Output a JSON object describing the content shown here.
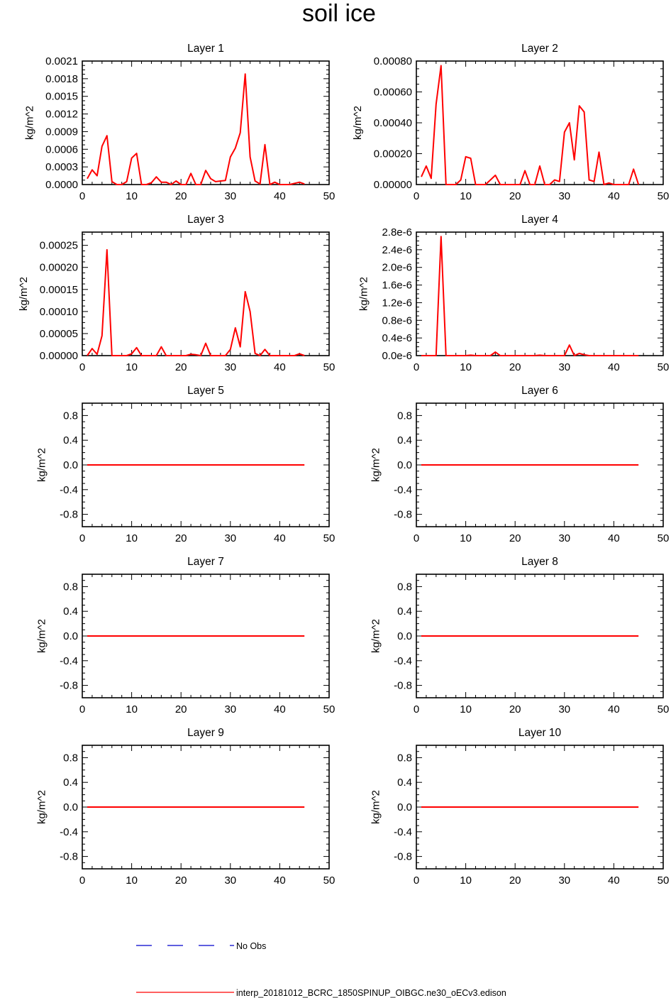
{
  "title": "soil ice",
  "legend": {
    "entries": [
      {
        "label": "No Obs",
        "color": "#0000cc",
        "style": "dashed"
      },
      {
        "label": "interp_20181012_BCRC_1850SPINUP_OIBGC.ne30_oECv3.edison",
        "color": "#ff0000",
        "style": "solid"
      }
    ]
  },
  "colors": {
    "series": "#ff0000",
    "obs": "#0000cc",
    "axis": "#000000"
  },
  "chart_data": [
    {
      "type": "line",
      "title": "Layer 1",
      "xlabel": "",
      "ylabel": "kg/m^2",
      "xlim": [
        0,
        50
      ],
      "ylim": [
        0,
        0.0021
      ],
      "xticks": [
        0,
        10,
        20,
        30,
        40,
        50
      ],
      "xtick_labels": [
        "0",
        "10",
        "20",
        "30",
        "40",
        "50"
      ],
      "yticks": [
        0,
        0.0003,
        0.0006,
        0.0009,
        0.0012,
        0.0015,
        0.0018,
        0.0021
      ],
      "ytick_labels": [
        "0.0000",
        "0.0003",
        "0.0006",
        "0.0009",
        "0.0012",
        "0.0015",
        "0.0018",
        "0.0021"
      ],
      "series": [
        {
          "x": [
            1,
            2,
            3,
            4,
            5,
            6,
            7,
            8,
            9,
            10,
            11,
            12,
            13,
            14,
            15,
            16,
            17,
            18,
            19,
            20,
            21,
            22,
            23,
            24,
            25,
            26,
            27,
            28,
            29,
            30,
            31,
            32,
            33,
            34,
            35,
            36,
            37,
            38,
            39,
            40,
            41,
            42,
            43,
            44,
            45
          ],
          "values": [
            0.0001,
            0.00025,
            0.00015,
            0.00065,
            0.00083,
            5e-05,
            0.0,
            0.0,
            5e-05,
            0.00045,
            0.00053,
            0.0,
            0.0,
            3e-05,
            0.00013,
            4e-05,
            4e-05,
            0.0,
            6e-05,
            0.0,
            0.0,
            0.00019,
            0.0,
            0.0,
            0.00024,
            0.0001,
            5e-05,
            6e-05,
            7e-05,
            0.00047,
            0.00062,
            0.00088,
            0.00188,
            0.00047,
            6e-05,
            1e-05,
            0.00068,
            0.0,
            4e-05,
            0.0,
            0.0,
            0.0,
            2e-05,
            4e-05,
            1e-05
          ]
        }
      ]
    },
    {
      "type": "line",
      "title": "Layer 2",
      "xlabel": "",
      "ylabel": "kg/m^2",
      "xlim": [
        0,
        50
      ],
      "ylim": [
        0,
        0.0008
      ],
      "xticks": [
        0,
        10,
        20,
        30,
        40,
        50
      ],
      "xtick_labels": [
        "0",
        "10",
        "20",
        "30",
        "40",
        "50"
      ],
      "yticks": [
        0,
        0.0002,
        0.0004,
        0.0006,
        0.0008
      ],
      "ytick_labels": [
        "0.00000",
        "0.00020",
        "0.00040",
        "0.00060",
        "0.00080"
      ],
      "series": [
        {
          "x": [
            1,
            2,
            3,
            4,
            5,
            6,
            7,
            8,
            9,
            10,
            11,
            12,
            13,
            14,
            15,
            16,
            17,
            18,
            19,
            20,
            21,
            22,
            23,
            24,
            25,
            26,
            27,
            28,
            29,
            30,
            31,
            32,
            33,
            34,
            35,
            36,
            37,
            38,
            39,
            40,
            41,
            42,
            43,
            44,
            45
          ],
          "values": [
            5e-05,
            0.00012,
            4e-05,
            0.00052,
            0.00077,
            0.0,
            0.0,
            0.0,
            3e-05,
            0.00018,
            0.00017,
            0.0,
            0.0,
            0.0,
            3e-05,
            6e-05,
            0.0,
            0.0,
            0.0,
            0.0,
            0.0,
            9e-05,
            0.0,
            0.0,
            0.00012,
            0.0,
            0.0,
            3e-05,
            2e-05,
            0.00034,
            0.0004,
            0.00016,
            0.00051,
            0.00047,
            3e-05,
            2e-05,
            0.00021,
            0.0,
            1e-05,
            0.0,
            0.0,
            0.0,
            0.0,
            0.0001,
            0.0
          ]
        }
      ]
    },
    {
      "type": "line",
      "title": "Layer 3",
      "xlabel": "",
      "ylabel": "kg/m^2",
      "xlim": [
        0,
        50
      ],
      "ylim": [
        0,
        0.00028
      ],
      "xticks": [
        0,
        10,
        20,
        30,
        40,
        50
      ],
      "xtick_labels": [
        "0",
        "10",
        "20",
        "30",
        "40",
        "50"
      ],
      "yticks": [
        0,
        5e-05,
        0.0001,
        0.00015,
        0.0002,
        0.00025
      ],
      "ytick_labels": [
        "0.00000",
        "0.00005",
        "0.00010",
        "0.00015",
        "0.00020",
        "0.00025"
      ],
      "series": [
        {
          "x": [
            1,
            2,
            3,
            4,
            5,
            6,
            7,
            8,
            9,
            10,
            11,
            12,
            13,
            14,
            15,
            16,
            17,
            18,
            19,
            20,
            21,
            22,
            23,
            24,
            25,
            26,
            27,
            28,
            29,
            30,
            31,
            32,
            33,
            34,
            35,
            36,
            37,
            38,
            39,
            40,
            41,
            42,
            43,
            44,
            45
          ],
          "values": [
            0.0,
            1.6e-05,
            3e-06,
            4.5e-05,
            0.00024,
            0.0,
            0.0,
            0.0,
            0.0,
            4e-06,
            1.8e-05,
            0.0,
            0.0,
            0.0,
            0.0,
            2e-05,
            0.0,
            0.0,
            0.0,
            0.0,
            0.0,
            3e-06,
            2e-06,
            0.0,
            2.8e-05,
            0.0,
            0.0,
            0.0,
            0.0,
            1.4e-05,
            6.3e-05,
            2e-05,
            0.000145,
            0.0001,
            5e-06,
            0.0,
            1.4e-05,
            0.0,
            0.0,
            0.0,
            0.0,
            0.0,
            0.0,
            4e-06,
            0.0
          ]
        }
      ]
    },
    {
      "type": "line",
      "title": "Layer 4",
      "xlabel": "",
      "ylabel": "kg/m^2",
      "xlim": [
        0,
        50
      ],
      "ylim": [
        0,
        2.8e-06
      ],
      "xticks": [
        0,
        10,
        20,
        30,
        40,
        50
      ],
      "xtick_labels": [
        "0",
        "10",
        "20",
        "30",
        "40",
        "50"
      ],
      "yticks": [
        0,
        4e-07,
        8e-07,
        1.2e-06,
        1.6e-06,
        2e-06,
        2.4e-06,
        2.8e-06
      ],
      "ytick_labels": [
        "0.0e-6",
        "0.4e-6",
        "0.8e-6",
        "1.2e-6",
        "1.6e-6",
        "2.0e-6",
        "2.4e-6",
        "2.8e-6"
      ],
      "series": [
        {
          "x": [
            1,
            2,
            3,
            4,
            5,
            6,
            7,
            8,
            9,
            10,
            11,
            12,
            13,
            14,
            15,
            16,
            17,
            18,
            19,
            20,
            21,
            22,
            23,
            24,
            25,
            26,
            27,
            28,
            29,
            30,
            31,
            32,
            33,
            34,
            35,
            36,
            37,
            38,
            39,
            40,
            41,
            42,
            43,
            44,
            45
          ],
          "values": [
            0,
            0,
            0,
            0,
            2.7e-06,
            0,
            0,
            0,
            0,
            0,
            1e-08,
            0,
            0,
            0,
            0,
            8e-08,
            0,
            0,
            0,
            0,
            0,
            0,
            0,
            0,
            1e-08,
            0,
            0,
            0,
            0,
            0,
            2.4e-07,
            0,
            5e-08,
            2e-08,
            0,
            0,
            0,
            0,
            0,
            0,
            0,
            0,
            0,
            0,
            0
          ]
        }
      ]
    },
    {
      "type": "line",
      "title": "Layer 5",
      "xlabel": "",
      "ylabel": "kg/m^2",
      "xlim": [
        0,
        50
      ],
      "ylim": [
        -1,
        1
      ],
      "xticks": [
        0,
        10,
        20,
        30,
        40,
        50
      ],
      "xtick_labels": [
        "0",
        "10",
        "20",
        "30",
        "40",
        "50"
      ],
      "yticks": [
        -0.8,
        -0.4,
        0.0,
        0.4,
        0.8
      ],
      "ytick_labels": [
        "-0.8",
        "-0.4",
        "0.0",
        "0.4",
        "0.8"
      ],
      "series": [
        {
          "x": [
            1,
            45
          ],
          "values": [
            0,
            0
          ]
        }
      ]
    },
    {
      "type": "line",
      "title": "Layer 6",
      "xlabel": "",
      "ylabel": "kg/m^2",
      "xlim": [
        0,
        50
      ],
      "ylim": [
        -1,
        1
      ],
      "xticks": [
        0,
        10,
        20,
        30,
        40,
        50
      ],
      "xtick_labels": [
        "0",
        "10",
        "20",
        "30",
        "40",
        "50"
      ],
      "yticks": [
        -0.8,
        -0.4,
        0.0,
        0.4,
        0.8
      ],
      "ytick_labels": [
        "-0.8",
        "-0.4",
        "0.0",
        "0.4",
        "0.8"
      ],
      "series": [
        {
          "x": [
            1,
            45
          ],
          "values": [
            0,
            0
          ]
        }
      ]
    },
    {
      "type": "line",
      "title": "Layer 7",
      "xlabel": "",
      "ylabel": "kg/m^2",
      "xlim": [
        0,
        50
      ],
      "ylim": [
        -1,
        1
      ],
      "xticks": [
        0,
        10,
        20,
        30,
        40,
        50
      ],
      "xtick_labels": [
        "0",
        "10",
        "20",
        "30",
        "40",
        "50"
      ],
      "yticks": [
        -0.8,
        -0.4,
        0.0,
        0.4,
        0.8
      ],
      "ytick_labels": [
        "-0.8",
        "-0.4",
        "0.0",
        "0.4",
        "0.8"
      ],
      "series": [
        {
          "x": [
            1,
            45
          ],
          "values": [
            0,
            0
          ]
        }
      ]
    },
    {
      "type": "line",
      "title": "Layer 8",
      "xlabel": "",
      "ylabel": "kg/m^2",
      "xlim": [
        0,
        50
      ],
      "ylim": [
        -1,
        1
      ],
      "xticks": [
        0,
        10,
        20,
        30,
        40,
        50
      ],
      "xtick_labels": [
        "0",
        "10",
        "20",
        "30",
        "40",
        "50"
      ],
      "yticks": [
        -0.8,
        -0.4,
        0.0,
        0.4,
        0.8
      ],
      "ytick_labels": [
        "-0.8",
        "-0.4",
        "0.0",
        "0.4",
        "0.8"
      ],
      "series": [
        {
          "x": [
            1,
            45
          ],
          "values": [
            0,
            0
          ]
        }
      ]
    },
    {
      "type": "line",
      "title": "Layer 9",
      "xlabel": "",
      "ylabel": "kg/m^2",
      "xlim": [
        0,
        50
      ],
      "ylim": [
        -1,
        1
      ],
      "xticks": [
        0,
        10,
        20,
        30,
        40,
        50
      ],
      "xtick_labels": [
        "0",
        "10",
        "20",
        "30",
        "40",
        "50"
      ],
      "yticks": [
        -0.8,
        -0.4,
        0.0,
        0.4,
        0.8
      ],
      "ytick_labels": [
        "-0.8",
        "-0.4",
        "0.0",
        "0.4",
        "0.8"
      ],
      "series": [
        {
          "x": [
            1,
            45
          ],
          "values": [
            0,
            0
          ]
        }
      ]
    },
    {
      "type": "line",
      "title": "Layer 10",
      "xlabel": "",
      "ylabel": "kg/m^2",
      "xlim": [
        0,
        50
      ],
      "ylim": [
        -1,
        1
      ],
      "xticks": [
        0,
        10,
        20,
        30,
        40,
        50
      ],
      "xtick_labels": [
        "0",
        "10",
        "20",
        "30",
        "40",
        "50"
      ],
      "yticks": [
        -0.8,
        -0.4,
        0.0,
        0.4,
        0.8
      ],
      "ytick_labels": [
        "-0.8",
        "-0.4",
        "0.0",
        "0.4",
        "0.8"
      ],
      "series": [
        {
          "x": [
            1,
            45
          ],
          "values": [
            0,
            0
          ]
        }
      ]
    }
  ]
}
